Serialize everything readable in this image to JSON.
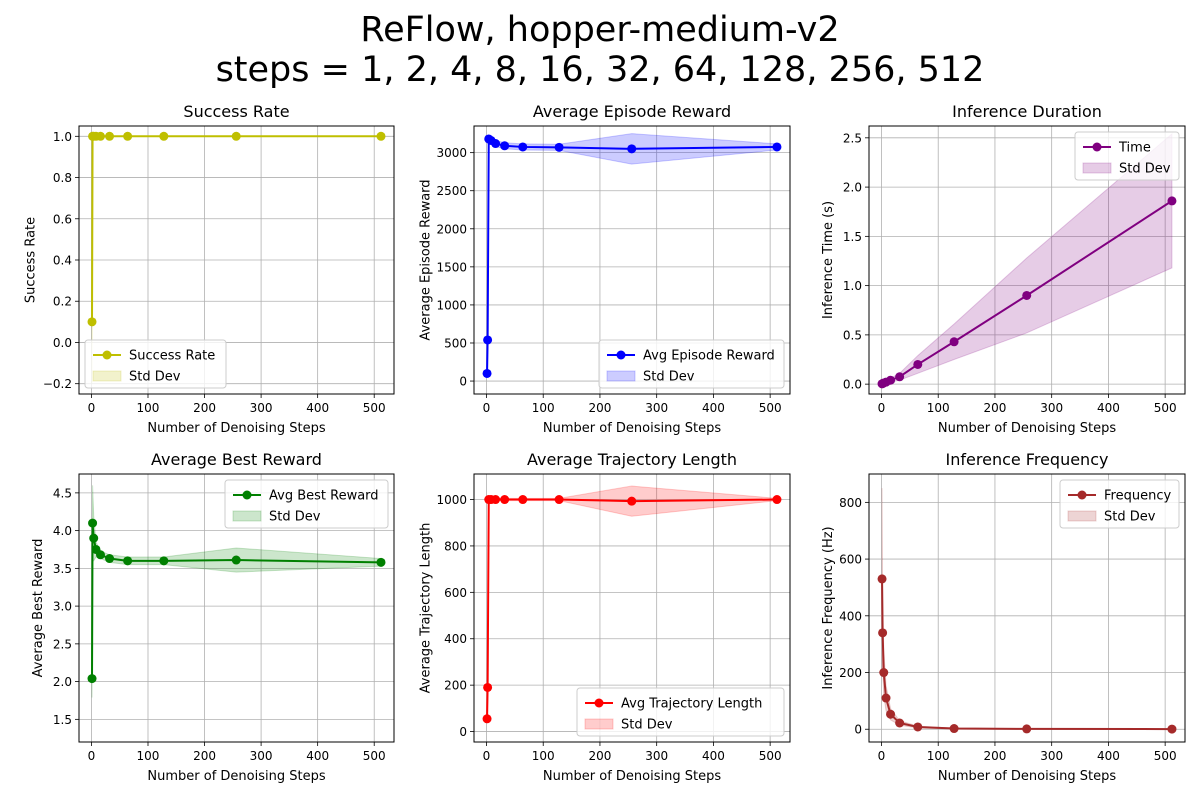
{
  "figure": {
    "title_line1": "ReFlow, hopper-medium-v2",
    "title_line2": "steps = 1, 2, 4, 8, 16, 32, 64, 128, 256, 512"
  },
  "chart_data": [
    {
      "type": "line",
      "title": "Success Rate",
      "xlabel": "Number of Denoising Steps",
      "ylabel": "Success Rate",
      "xlim": [
        -22,
        535
      ],
      "ylim": [
        -0.25,
        1.05
      ],
      "xticks": [
        0,
        100,
        200,
        300,
        400,
        500
      ],
      "xtick_labels": [
        "0",
        "100",
        "200",
        "300",
        "400",
        "500"
      ],
      "yticks": [
        -0.2,
        0.0,
        0.2,
        0.4,
        0.6,
        0.8,
        1.0
      ],
      "ytick_labels": [
        "−0.2",
        "0.0",
        "0.2",
        "0.4",
        "0.6",
        "0.8",
        "1.0"
      ],
      "grid": true,
      "legend_position": "lower-left",
      "color": "#bfbf00",
      "series_label": "Success Rate",
      "band_label": "Std Dev",
      "x": [
        1,
        2,
        4,
        8,
        16,
        32,
        64,
        128,
        256,
        512
      ],
      "y": [
        0.1,
        1.0,
        1.0,
        1.0,
        1.0,
        1.0,
        1.0,
        1.0,
        1.0,
        1.0
      ],
      "y_std": [
        0.3,
        0,
        0,
        0,
        0,
        0,
        0,
        0,
        0,
        0
      ]
    },
    {
      "type": "line",
      "title": "Average Episode Reward",
      "xlabel": "Number of Denoising Steps",
      "ylabel": "Average Episode Reward",
      "xlim": [
        -22,
        535
      ],
      "ylim": [
        -170,
        3350
      ],
      "xticks": [
        0,
        100,
        200,
        300,
        400,
        500
      ],
      "xtick_labels": [
        "0",
        "100",
        "200",
        "300",
        "400",
        "500"
      ],
      "yticks": [
        0,
        500,
        1000,
        1500,
        2000,
        2500,
        3000
      ],
      "ytick_labels": [
        "0",
        "500",
        "1000",
        "1500",
        "2000",
        "2500",
        "3000"
      ],
      "grid": true,
      "legend_position": "lower-right",
      "color": "#0000ff",
      "series_label": "Avg Episode Reward",
      "band_label": "Std Dev",
      "x": [
        1,
        2,
        4,
        8,
        16,
        32,
        64,
        128,
        256,
        512
      ],
      "y": [
        100,
        540,
        3180,
        3160,
        3120,
        3090,
        3075,
        3070,
        3050,
        3075
      ],
      "y_std": [
        60,
        200,
        40,
        40,
        40,
        40,
        40,
        40,
        200,
        40
      ]
    },
    {
      "type": "line",
      "title": "Inference Duration",
      "xlabel": "Number of Denoising Steps",
      "ylabel": "Inference Time (s)",
      "xlim": [
        -22,
        535
      ],
      "ylim": [
        -0.1,
        2.62
      ],
      "xticks": [
        0,
        100,
        200,
        300,
        400,
        500
      ],
      "xtick_labels": [
        "0",
        "100",
        "200",
        "300",
        "400",
        "500"
      ],
      "yticks": [
        0.0,
        0.5,
        1.0,
        1.5,
        2.0,
        2.5
      ],
      "ytick_labels": [
        "0.0",
        "0.5",
        "1.0",
        "1.5",
        "2.0",
        "2.5"
      ],
      "grid": true,
      "legend_position": "top-right",
      "color": "#800080",
      "series_label": "Time",
      "band_label": "Std Dev",
      "x": [
        1,
        2,
        4,
        8,
        16,
        32,
        64,
        128,
        256,
        512
      ],
      "y": [
        0.003,
        0.006,
        0.012,
        0.02,
        0.04,
        0.075,
        0.2,
        0.43,
        0.9,
        1.86
      ],
      "y_std": [
        0.002,
        0.003,
        0.006,
        0.01,
        0.02,
        0.035,
        0.09,
        0.18,
        0.38,
        0.68
      ]
    },
    {
      "type": "line",
      "title": "Average Best Reward",
      "xlabel": "Number of Denoising Steps",
      "ylabel": "Average Best Reward",
      "xlim": [
        -22,
        535
      ],
      "ylim": [
        1.2,
        4.75
      ],
      "xticks": [
        0,
        100,
        200,
        300,
        400,
        500
      ],
      "xtick_labels": [
        "0",
        "100",
        "200",
        "300",
        "400",
        "500"
      ],
      "yticks": [
        1.5,
        2.0,
        2.5,
        3.0,
        3.5,
        4.0,
        4.5
      ],
      "ytick_labels": [
        "1.5",
        "2.0",
        "2.5",
        "3.0",
        "3.5",
        "4.0",
        "4.5"
      ],
      "grid": true,
      "legend_position": "top-right",
      "color": "#008000",
      "series_label": "Avg Best Reward",
      "band_label": "Std Dev",
      "x": [
        1,
        2,
        4,
        8,
        16,
        32,
        64,
        128,
        256,
        512
      ],
      "y": [
        2.04,
        4.1,
        3.9,
        3.75,
        3.68,
        3.63,
        3.6,
        3.6,
        3.61,
        3.58
      ],
      "y_std": [
        0.25,
        0.5,
        0.3,
        0.1,
        0.05,
        0.05,
        0.05,
        0.05,
        0.16,
        0.05
      ]
    },
    {
      "type": "line",
      "title": "Average Trajectory Length",
      "xlabel": "Number of Denoising Steps",
      "ylabel": "Average Trajectory Length",
      "xlim": [
        -22,
        535
      ],
      "ylim": [
        -45,
        1110
      ],
      "xticks": [
        0,
        100,
        200,
        300,
        400,
        500
      ],
      "xtick_labels": [
        "0",
        "100",
        "200",
        "300",
        "400",
        "500"
      ],
      "yticks": [
        0,
        200,
        400,
        600,
        800,
        1000
      ],
      "ytick_labels": [
        "0",
        "200",
        "400",
        "600",
        "800",
        "1000"
      ],
      "grid": true,
      "legend_position": "lower-right",
      "color": "#ff0000",
      "series_label": "Avg Trajectory Length",
      "band_label": "Std Dev",
      "x": [
        1,
        2,
        4,
        8,
        16,
        32,
        64,
        128,
        256,
        512
      ],
      "y": [
        55,
        190,
        1000,
        1000,
        1000,
        1000,
        1000,
        1000,
        993,
        1000
      ],
      "y_std": [
        20,
        60,
        5,
        5,
        5,
        5,
        5,
        5,
        65,
        5
      ]
    },
    {
      "type": "line",
      "title": "Inference Frequency",
      "xlabel": "Number of Denoising Steps",
      "ylabel": "Inference Frequency (Hz)",
      "xlim": [
        -22,
        535
      ],
      "ylim": [
        -45,
        900
      ],
      "xticks": [
        0,
        100,
        200,
        300,
        400,
        500
      ],
      "xtick_labels": [
        "0",
        "100",
        "200",
        "300",
        "400",
        "500"
      ],
      "yticks": [
        0,
        200,
        400,
        600,
        800
      ],
      "ytick_labels": [
        "0",
        "200",
        "400",
        "600",
        "800"
      ],
      "grid": true,
      "legend_position": "top-right",
      "color": "#a52a2a",
      "series_label": "Frequency",
      "band_label": "Std Dev",
      "x": [
        1,
        2,
        4,
        8,
        16,
        32,
        64,
        128,
        256,
        512
      ],
      "y": [
        530,
        340,
        200,
        110,
        53,
        22,
        8,
        2.5,
        1.2,
        0.55
      ],
      "y_std": [
        320,
        120,
        80,
        45,
        20,
        8,
        3,
        1,
        0.5,
        0.2
      ]
    }
  ]
}
